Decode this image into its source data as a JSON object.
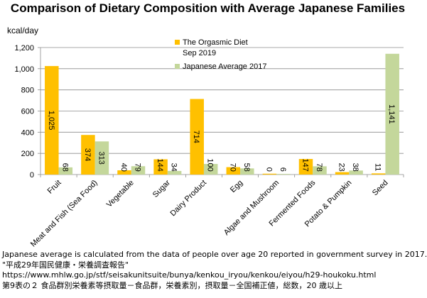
{
  "chart_data": {
    "type": "bar",
    "title": "Comparison of Dietary Composition with Average Japanese Families",
    "ylabel": "kcal/day",
    "xlabel": "",
    "ylim": [
      0,
      1200
    ],
    "yticks": [
      0,
      200,
      400,
      600,
      800,
      1000,
      1200
    ],
    "ytick_labels": [
      "0",
      "200",
      "400",
      "600",
      "800",
      "1,000",
      "1,200"
    ],
    "grid": true,
    "legend_position": "top-right",
    "categories": [
      "Fruit",
      "Meat and Fish (Sea Food)",
      "Vegetable",
      "Sugar",
      "Dairy Product",
      "Egg",
      "Algae and Mushroom",
      "Fermented Foods",
      "Potato & Pumpkin",
      "Seed"
    ],
    "series": [
      {
        "name": "The Orgasmic Diet Sep 2019",
        "legend_lines": [
          "The Orgasmic Diet",
          "Sep 2019"
        ],
        "color": "#ffc000",
        "values": [
          1025,
          374,
          40,
          144,
          714,
          70,
          0,
          147,
          23,
          11
        ],
        "labels": [
          "1,025",
          "374",
          "40",
          "144",
          "714",
          "70",
          "0",
          "147",
          "23",
          "11"
        ]
      },
      {
        "name": "Japanese Average 2017",
        "legend_lines": [
          "Japanese Average 2017"
        ],
        "color": "#c4d79b",
        "values": [
          68,
          313,
          79,
          34,
          100,
          58,
          6,
          78,
          38,
          1141
        ],
        "labels": [
          "68",
          "313",
          "79",
          "34",
          "100",
          "58",
          "6",
          "78",
          "38",
          "1,141"
        ]
      }
    ]
  },
  "notes": [
    "Japanese average is calculated from the data of people over age 20 reported in government survey in 2017.",
    "\"平成29年国民健康・栄養調査報告\"",
    "https://www.mhlw.go.jp/stf/seisakunitsuite/bunya/kenkou_iryou/kenkou/eiyou/h29-houkoku.html",
    "第9表の２ 食品群別栄養素等摂取量－食品群，栄養素別，摂取量－全国補正値，総数，20 歳以上"
  ]
}
